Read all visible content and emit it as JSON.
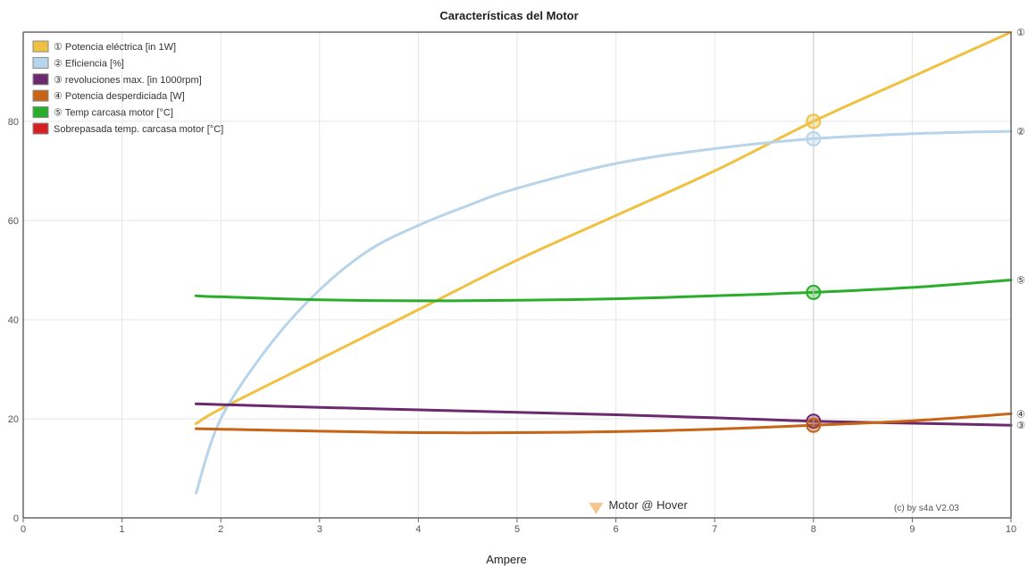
{
  "chart_data": {
    "type": "line",
    "title": "Características del Motor",
    "xlabel": "Ampere",
    "ylabel": "",
    "xlim": [
      0,
      10
    ],
    "ylim": [
      0,
      98
    ],
    "x_ticks": [
      0,
      1,
      2,
      3,
      4,
      5,
      6,
      7,
      8,
      9,
      10
    ],
    "y_ticks": [
      0,
      20,
      40,
      60,
      80
    ],
    "grid": true,
    "legend_position": "top-left",
    "series": [
      {
        "name": "① Potencia eléctrica [in 1W]",
        "color": "#f0c040",
        "end_marker": "①",
        "x": [
          1.75,
          2,
          3,
          4,
          5,
          6,
          7,
          8,
          9,
          10
        ],
        "y": [
          19,
          22,
          32,
          42,
          52,
          61,
          70,
          80,
          89,
          98
        ]
      },
      {
        "name": "② Eficiencia [%]",
        "color": "#b8d4ea",
        "end_marker": "②",
        "x": [
          1.75,
          2,
          2.5,
          3,
          3.5,
          4,
          4.5,
          5,
          6,
          7,
          8,
          9,
          10
        ],
        "y": [
          5,
          20,
          35,
          46,
          54,
          59,
          63,
          66.5,
          71.5,
          74.5,
          76.5,
          77.5,
          78
        ]
      },
      {
        "name": "③ revoluciones max. [in 1000rpm]",
        "color": "#6b2a6e",
        "end_marker": "③",
        "x": [
          1.75,
          3,
          4,
          5,
          6,
          7,
          8,
          9,
          10
        ],
        "y": [
          23,
          22.3,
          21.8,
          21.3,
          20.8,
          20.2,
          19.5,
          19.1,
          18.7
        ]
      },
      {
        "name": "④ Potencia desperdiciada [W]",
        "color": "#c86414",
        "end_marker": "④",
        "x": [
          1.75,
          3,
          4,
          5,
          6,
          7,
          8,
          9,
          10
        ],
        "y": [
          18,
          17.5,
          17.2,
          17.2,
          17.4,
          17.9,
          18.7,
          19.6,
          21
        ]
      },
      {
        "name": "⑤ Temp carcasa motor [°C]",
        "color": "#2aae2a",
        "end_marker": "⑤",
        "x": [
          1.75,
          2,
          3,
          4,
          5,
          6,
          7,
          8,
          9,
          10
        ],
        "y": [
          44.8,
          44.6,
          44,
          43.8,
          43.9,
          44.2,
          44.8,
          45.5,
          46.5,
          48
        ]
      },
      {
        "name": "Sobrepasada temp. carcasa motor [°C]",
        "color": "#d42020",
        "end_marker": "",
        "x": [],
        "y": []
      }
    ],
    "hover": {
      "x": 8,
      "label": "Motor @ Hover",
      "marker_x": 5.8
    },
    "credit": "(c) by s4a  V2.03"
  }
}
